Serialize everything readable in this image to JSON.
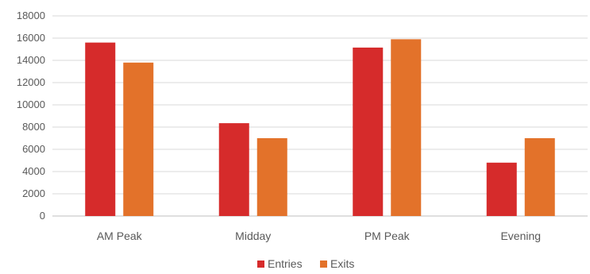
{
  "chart_data": {
    "type": "bar",
    "categories": [
      "AM Peak",
      "Midday",
      "PM Peak",
      "Evening"
    ],
    "series": [
      {
        "name": "Entries",
        "color": "#d62b2b",
        "values": [
          15600,
          8350,
          15150,
          4800
        ]
      },
      {
        "name": "Exits",
        "color": "#e3722a",
        "values": [
          13800,
          7000,
          15900,
          7000
        ]
      }
    ],
    "yticks": [
      "0",
      "2000",
      "4000",
      "6000",
      "8000",
      "10000",
      "12000",
      "14000",
      "16000",
      "18000"
    ],
    "ylim": [
      0,
      18000
    ],
    "grid": true,
    "legend": {
      "position": "bottom",
      "items": [
        "Entries",
        "Exits"
      ]
    }
  }
}
